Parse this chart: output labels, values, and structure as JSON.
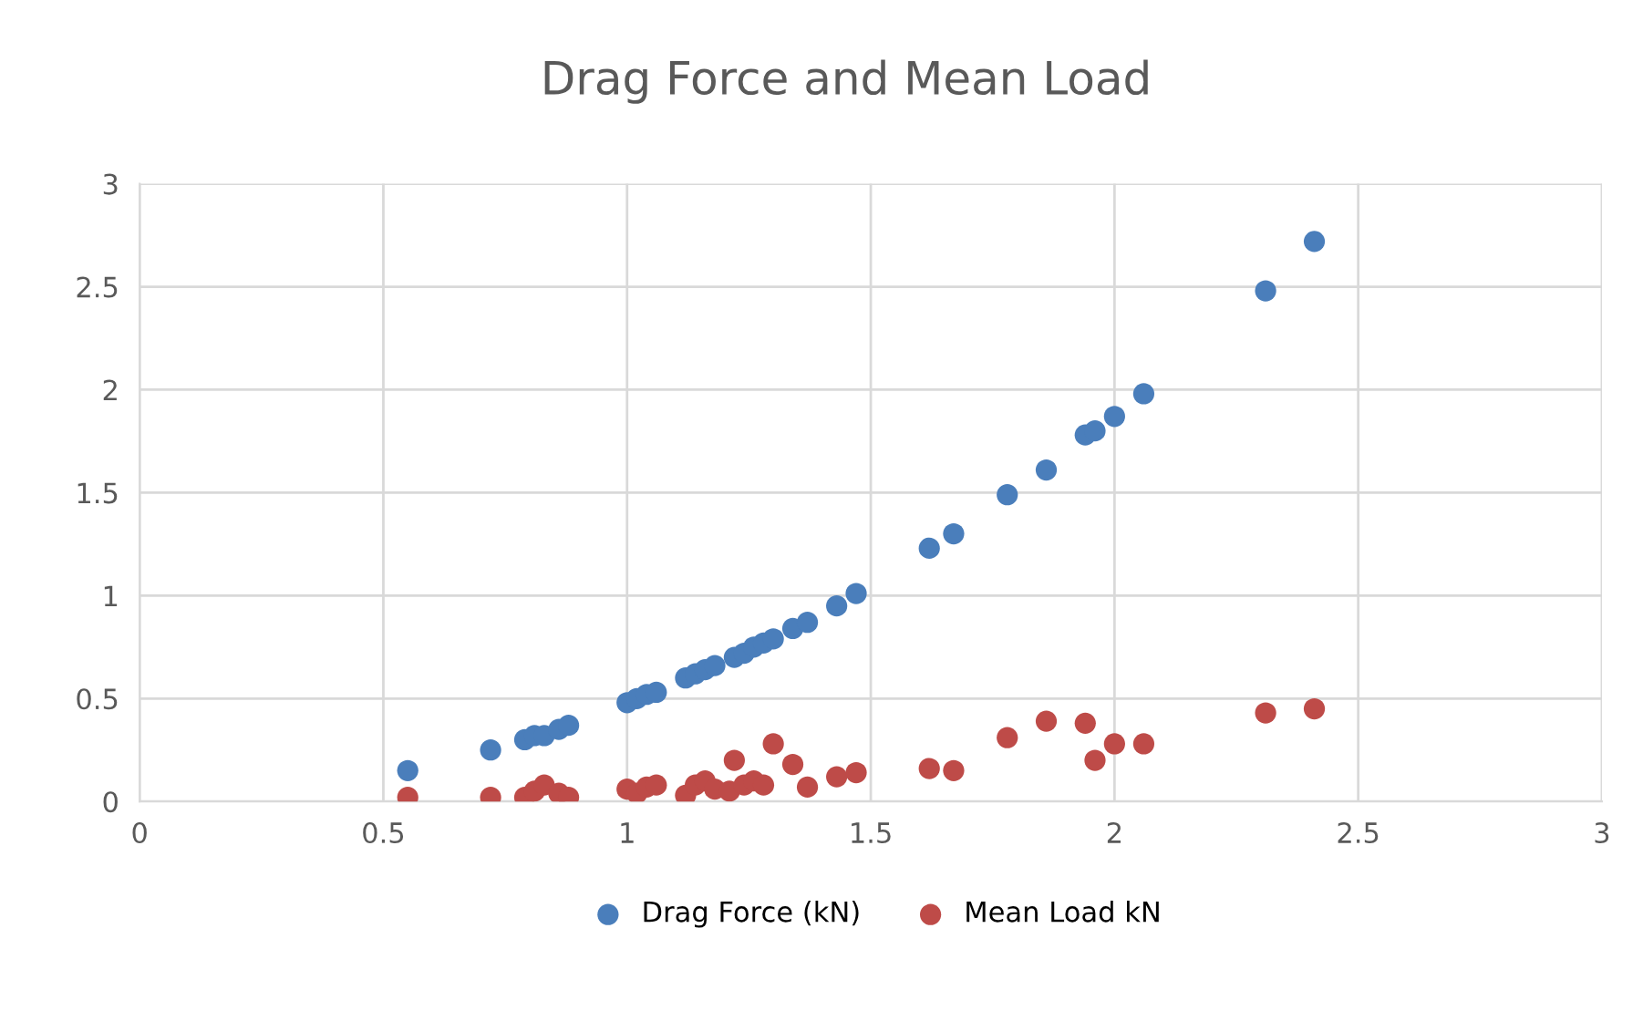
{
  "chart_data": {
    "type": "scatter",
    "title": "Drag Force and Mean Load",
    "xlim": [
      0,
      3
    ],
    "xticks": [
      0,
      0.5,
      1,
      1.5,
      2,
      2.5,
      3
    ],
    "ylim": [
      0,
      3
    ],
    "yticks": [
      0,
      0.5,
      1,
      1.5,
      2,
      2.5,
      3
    ],
    "grid": true,
    "legend": "bottom",
    "marker": "circle",
    "series": [
      {
        "name": "Drag Force (kN)",
        "color": "#4a7ebb",
        "x": [
          0.55,
          0.72,
          0.79,
          0.81,
          0.83,
          0.86,
          0.88,
          1.0,
          1.02,
          1.04,
          1.06,
          1.12,
          1.14,
          1.16,
          1.18,
          1.21,
          1.22,
          1.24,
          1.26,
          1.28,
          1.3,
          1.34,
          1.36,
          1.37,
          1.43,
          1.47,
          1.62,
          1.67,
          1.78,
          1.86,
          1.94,
          1.96,
          2.0,
          2.06,
          2.31,
          2.41
        ],
        "values": [
          0.15,
          0.25,
          0.3,
          0.32,
          0.32,
          0.35,
          0.37,
          0.48,
          0.5,
          0.52,
          0.53,
          0.6,
          0.62,
          0.64,
          0.66,
          null,
          0.7,
          0.72,
          0.75,
          0.77,
          0.79,
          0.84,
          null,
          0.87,
          0.95,
          1.01,
          1.23,
          1.3,
          1.49,
          1.61,
          1.78,
          1.8,
          1.87,
          1.98,
          2.48,
          2.72
        ]
      },
      {
        "name": "Mean Load kN",
        "color": "#be4b48",
        "x": [
          0.55,
          0.72,
          0.79,
          0.81,
          0.83,
          0.86,
          0.88,
          1.0,
          1.02,
          1.04,
          1.06,
          1.12,
          1.14,
          1.16,
          1.18,
          1.21,
          1.22,
          1.24,
          1.26,
          1.28,
          1.3,
          1.34,
          1.36,
          1.37,
          1.43,
          1.47,
          1.62,
          1.67,
          1.78,
          1.86,
          1.94,
          1.96,
          2.0,
          2.06,
          2.31,
          2.41
        ],
        "values": [
          0.02,
          0.02,
          0.02,
          0.05,
          0.08,
          0.04,
          0.02,
          0.06,
          0.04,
          0.07,
          0.08,
          0.03,
          0.08,
          0.1,
          0.06,
          0.05,
          0.2,
          0.08,
          0.1,
          0.08,
          0.28,
          0.18,
          null,
          0.07,
          0.12,
          0.14,
          0.16,
          0.15,
          0.31,
          0.39,
          0.38,
          0.2,
          0.28,
          0.28,
          0.43,
          0.45
        ]
      }
    ]
  }
}
